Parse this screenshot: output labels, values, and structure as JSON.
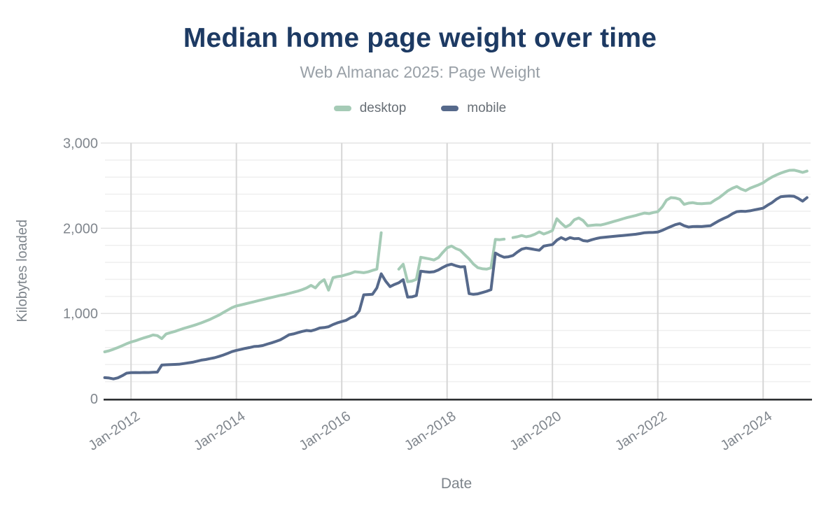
{
  "header": {
    "title": "Median home page weight over time",
    "subtitle": "Web Almanac 2025: Page Weight"
  },
  "colors": {
    "title": "#1d3a63",
    "subtitle": "#99a0a7",
    "tick_label": "#80868d",
    "axis_title": "#7d848b",
    "axis_line": "#2e3033",
    "v_gridline": "#d6d6d6",
    "h_gridline_major": "#e3e3e3",
    "h_gridline_minor": "#efefef",
    "desktop": "#a5cbb6",
    "mobile": "#56698b"
  },
  "chart_data": {
    "type": "line",
    "title": "Median home page weight over time",
    "subtitle": "Web Almanac 2025: Page Weight",
    "xlabel": "Date",
    "ylabel": "Kilobytes loaded",
    "ylim": [
      0,
      3000
    ],
    "legend_position": "top",
    "grid": {
      "horizontal_step": 200,
      "vertical_at_years": true
    },
    "y_ticks": [
      {
        "value": 0,
        "label": "0"
      },
      {
        "value": 1000,
        "label": "1,000"
      },
      {
        "value": 2000,
        "label": "2,000"
      },
      {
        "value": 3000,
        "label": "3,000"
      }
    ],
    "x_ticks": [
      {
        "year": 2012,
        "label": "Jan-2012"
      },
      {
        "year": 2014,
        "label": "Jan-2014"
      },
      {
        "year": 2016,
        "label": "Jan-2016"
      },
      {
        "year": 2018,
        "label": "Jan-2018"
      },
      {
        "year": 2020,
        "label": "Jan-2020"
      },
      {
        "year": 2022,
        "label": "Jan-2022"
      },
      {
        "year": 2024,
        "label": "Jan-2024"
      }
    ],
    "x": [
      "2011-07",
      "2011-08",
      "2011-09",
      "2011-10",
      "2011-11",
      "2011-12",
      "2012-01",
      "2012-02",
      "2012-03",
      "2012-04",
      "2012-05",
      "2012-06",
      "2012-07",
      "2012-08",
      "2012-09",
      "2012-10",
      "2012-11",
      "2012-12",
      "2013-01",
      "2013-02",
      "2013-03",
      "2013-04",
      "2013-05",
      "2013-06",
      "2013-07",
      "2013-08",
      "2013-09",
      "2013-10",
      "2013-11",
      "2013-12",
      "2014-01",
      "2014-02",
      "2014-03",
      "2014-04",
      "2014-05",
      "2014-06",
      "2014-07",
      "2014-08",
      "2014-09",
      "2014-10",
      "2014-11",
      "2014-12",
      "2015-01",
      "2015-02",
      "2015-03",
      "2015-04",
      "2015-05",
      "2015-06",
      "2015-07",
      "2015-08",
      "2015-09",
      "2015-10",
      "2015-11",
      "2015-12",
      "2016-01",
      "2016-02",
      "2016-03",
      "2016-04",
      "2016-05",
      "2016-06",
      "2016-07",
      "2016-08",
      "2016-09",
      "2016-10",
      "2016-11",
      "2016-12",
      "2017-01",
      "2017-02",
      "2017-03",
      "2017-04",
      "2017-05",
      "2017-06",
      "2017-07",
      "2017-08",
      "2017-09",
      "2017-10",
      "2017-11",
      "2017-12",
      "2018-01",
      "2018-02",
      "2018-03",
      "2018-04",
      "2018-05",
      "2018-06",
      "2018-07",
      "2018-08",
      "2018-09",
      "2018-10",
      "2018-11",
      "2018-12",
      "2019-01",
      "2019-02",
      "2019-03",
      "2019-04",
      "2019-05",
      "2019-06",
      "2019-07",
      "2019-08",
      "2019-09",
      "2019-10",
      "2019-11",
      "2019-12",
      "2020-01",
      "2020-02",
      "2020-03",
      "2020-04",
      "2020-05",
      "2020-06",
      "2020-07",
      "2020-08",
      "2020-09",
      "2020-10",
      "2020-11",
      "2020-12",
      "2021-01",
      "2021-02",
      "2021-03",
      "2021-04",
      "2021-05",
      "2021-06",
      "2021-07",
      "2021-08",
      "2021-09",
      "2021-10",
      "2021-11",
      "2021-12",
      "2022-01",
      "2022-02",
      "2022-03",
      "2022-04",
      "2022-05",
      "2022-06",
      "2022-07",
      "2022-08",
      "2022-09",
      "2022-10",
      "2022-11",
      "2022-12",
      "2023-01",
      "2023-02",
      "2023-03",
      "2023-04",
      "2023-05",
      "2023-06",
      "2023-07",
      "2023-08",
      "2023-09",
      "2023-10",
      "2023-11",
      "2023-12",
      "2024-01",
      "2024-02",
      "2024-03",
      "2024-04",
      "2024-05",
      "2024-06",
      "2024-07",
      "2024-08",
      "2024-09",
      "2024-10",
      "2024-11"
    ],
    "series": [
      {
        "name": "desktop",
        "color": "#a5cbb6",
        "values": [
          550,
          562,
          580,
          600,
          622,
          645,
          665,
          680,
          698,
          715,
          730,
          748,
          740,
          705,
          760,
          775,
          790,
          808,
          825,
          840,
          855,
          872,
          890,
          910,
          931,
          955,
          980,
          1010,
          1040,
          1068,
          1088,
          1100,
          1112,
          1125,
          1138,
          1151,
          1163,
          1175,
          1188,
          1200,
          1212,
          1222,
          1235,
          1249,
          1262,
          1280,
          1300,
          1330,
          1300,
          1360,
          1397,
          1274,
          1420,
          1432,
          1440,
          1455,
          1470,
          1490,
          1485,
          1478,
          1488,
          1505,
          1520,
          1948,
          null,
          null,
          null,
          1520,
          1578,
          1372,
          1380,
          1400,
          1660,
          1650,
          1640,
          1628,
          1655,
          1715,
          1770,
          1792,
          1762,
          1742,
          1690,
          1640,
          1580,
          1537,
          1525,
          1520,
          1535,
          1870,
          1866,
          1872,
          null,
          1890,
          1900,
          1915,
          1900,
          1910,
          1930,
          1958,
          1932,
          1950,
          1973,
          2112,
          2060,
          2014,
          2041,
          2100,
          2121,
          2090,
          2030,
          2035,
          2040,
          2038,
          2050,
          2065,
          2080,
          2095,
          2110,
          2125,
          2137,
          2150,
          2165,
          2178,
          2172,
          2185,
          2195,
          2250,
          2330,
          2360,
          2355,
          2340,
          2280,
          2295,
          2300,
          2290,
          2288,
          2292,
          2295,
          2330,
          2360,
          2400,
          2441,
          2470,
          2490,
          2460,
          2441,
          2470,
          2490,
          2510,
          2534,
          2570,
          2600,
          2625,
          2647,
          2665,
          2680,
          2682,
          2670,
          2655,
          2671
        ]
      },
      {
        "name": "mobile",
        "color": "#56698b",
        "values": [
          247,
          243,
          232,
          245,
          270,
          300,
          305,
          307,
          306,
          308,
          307,
          310,
          312,
          395,
          398,
          400,
          402,
          405,
          412,
          420,
          428,
          440,
          452,
          460,
          470,
          480,
          495,
          512,
          532,
          552,
          567,
          578,
          590,
          600,
          612,
          616,
          624,
          640,
          655,
          672,
          690,
          720,
          750,
          760,
          775,
          790,
          800,
          795,
          810,
          830,
          835,
          845,
          870,
          890,
          905,
          920,
          950,
          970,
          1030,
          1219,
          1222,
          1225,
          1300,
          1466,
          1380,
          1315,
          1340,
          1360,
          1397,
          1192,
          1195,
          1210,
          1496,
          1490,
          1485,
          1490,
          1510,
          1540,
          1565,
          1578,
          1560,
          1546,
          1550,
          1233,
          1225,
          1230,
          1245,
          1260,
          1280,
          1710,
          1680,
          1660,
          1665,
          1680,
          1720,
          1755,
          1767,
          1760,
          1750,
          1742,
          1790,
          1800,
          1808,
          1860,
          1890,
          1866,
          1890,
          1877,
          1880,
          1855,
          1849,
          1866,
          1880,
          1890,
          1895,
          1900,
          1905,
          1910,
          1915,
          1920,
          1925,
          1930,
          1938,
          1948,
          1950,
          1952,
          1955,
          1975,
          1998,
          2020,
          2042,
          2055,
          2030,
          2014,
          2020,
          2022,
          2020,
          2025,
          2030,
          2060,
          2090,
          2115,
          2137,
          2170,
          2195,
          2200,
          2198,
          2205,
          2215,
          2225,
          2236,
          2270,
          2300,
          2340,
          2370,
          2375,
          2378,
          2375,
          2350,
          2318,
          2360
        ]
      }
    ]
  }
}
